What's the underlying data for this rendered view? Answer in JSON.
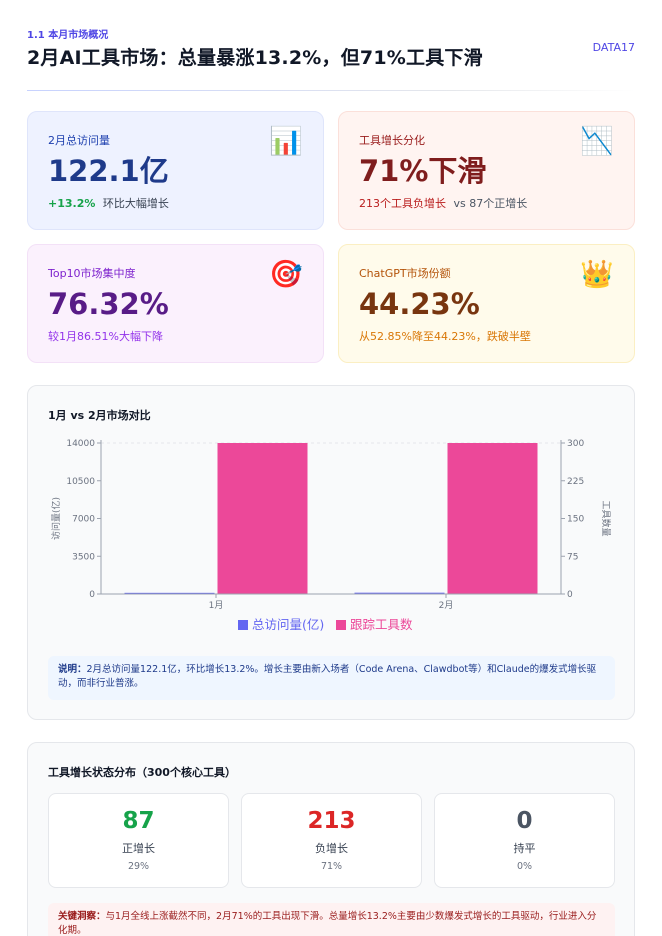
{
  "header": {
    "section_label": "1.1 本月市场概况",
    "title": "2月AI工具市场：总量暴涨13.2%，但71%工具下滑",
    "brand": "DATA17"
  },
  "cards": {
    "visits": {
      "label": "2月总访问量",
      "value": "122.1亿",
      "sub_highlight": "+13.2%",
      "sub_text": "环比大幅增长",
      "icon": "bar-chart-icon",
      "icon_glyph": "📊"
    },
    "growth": {
      "label": "工具增长分化",
      "value": "71%下滑",
      "sub_highlight": "213个工具负增长",
      "sub_text": "vs 87个正增长",
      "icon": "chart-decreasing-icon",
      "icon_glyph": "📉"
    },
    "top10": {
      "label": "Top10市场集中度",
      "value": "76.32%",
      "sub_text": "较1月86.51%大幅下降",
      "icon": "target-icon",
      "icon_glyph": "🎯"
    },
    "chatgpt": {
      "label": "ChatGPT市场份额",
      "value": "44.23%",
      "sub_text": "从52.85%降至44.23%，跌破半壁",
      "icon": "crown-icon",
      "icon_glyph": "👑"
    }
  },
  "chart_panel": {
    "title": "1月 vs 2月市场对比",
    "note_label": "说明：",
    "note_text": "2月总访问量122.1亿，环比增长13.2%。增长主要由新入场者（Code Arena、Clawdbot等）和Claude的爆发式增长驱动，而非行业普涨。"
  },
  "chart_data": {
    "type": "bar",
    "categories": [
      "1月",
      "2月"
    ],
    "series": [
      {
        "name": "总访问量(亿)",
        "axis": "left",
        "values": [
          107.9,
          122.1
        ],
        "color": "#6366f1"
      },
      {
        "name": "跟踪工具数",
        "axis": "right",
        "values": [
          300,
          300
        ],
        "color": "#ec4899"
      }
    ],
    "ylabel": "访问量(亿)",
    "y2label": "工具数量",
    "ylim": [
      0,
      14000
    ],
    "y2lim": [
      0,
      300
    ],
    "yticks": [
      "0",
      "3500",
      "7000",
      "10500",
      "14000"
    ],
    "y2ticks": [
      "0",
      "75",
      "150",
      "225",
      "300"
    ],
    "legend_position": "bottom"
  },
  "status_panel": {
    "title": "工具增长状态分布（300个核心工具）",
    "stats": [
      {
        "value": "87",
        "label": "正增长",
        "pct": "29%",
        "color": "#16a34a"
      },
      {
        "value": "213",
        "label": "负增长",
        "pct": "71%",
        "color": "#dc2626"
      },
      {
        "value": "0",
        "label": "持平",
        "pct": "0%",
        "color": "#4b5563"
      }
    ],
    "note_label": "关键洞察：",
    "note_text": "与1月全线上涨截然不同，2月71%的工具出现下滑。总量增长13.2%主要由少数爆发式增长的工具驱动，行业进入分化期。"
  }
}
